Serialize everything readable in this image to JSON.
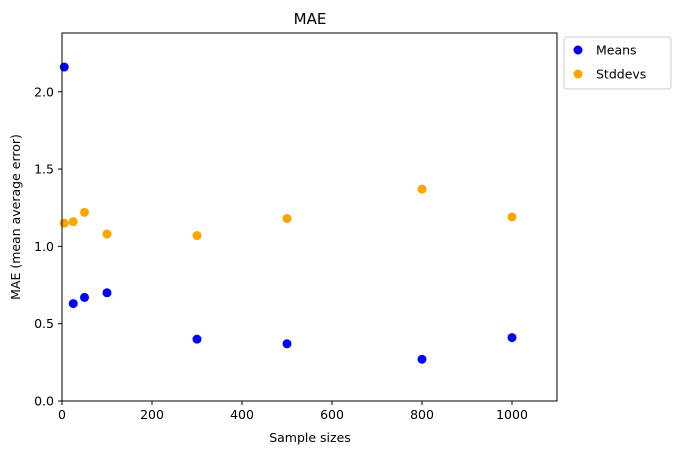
{
  "chart_data": {
    "type": "scatter",
    "title": "MAE",
    "xlabel": "Sample sizes",
    "ylabel": "MAE (mean average error)",
    "xlim": [
      0,
      1100
    ],
    "ylim": [
      0,
      2.38
    ],
    "xticks": [
      0,
      200,
      400,
      600,
      800,
      1000
    ],
    "yticks": [
      0.0,
      0.5,
      1.0,
      1.5,
      2.0
    ],
    "xtick_labels": [
      "0",
      "200",
      "400",
      "600",
      "800",
      "1000"
    ],
    "ytick_labels": [
      "0.0",
      "0.5",
      "1.0",
      "1.5",
      "2.0"
    ],
    "grid": false,
    "legend_position": "outside-top-right",
    "series": [
      {
        "name": "Means",
        "color": "#0000ff",
        "x": [
          5,
          25,
          50,
          100,
          300,
          500,
          800,
          1000
        ],
        "y": [
          2.16,
          0.63,
          0.67,
          0.7,
          0.4,
          0.37,
          0.27,
          0.41
        ]
      },
      {
        "name": "Stddevs",
        "color": "#ffa500",
        "x": [
          5,
          25,
          50,
          100,
          300,
          500,
          800,
          1000
        ],
        "y": [
          1.15,
          1.16,
          1.22,
          1.08,
          1.07,
          1.18,
          1.37,
          1.19
        ]
      }
    ]
  }
}
